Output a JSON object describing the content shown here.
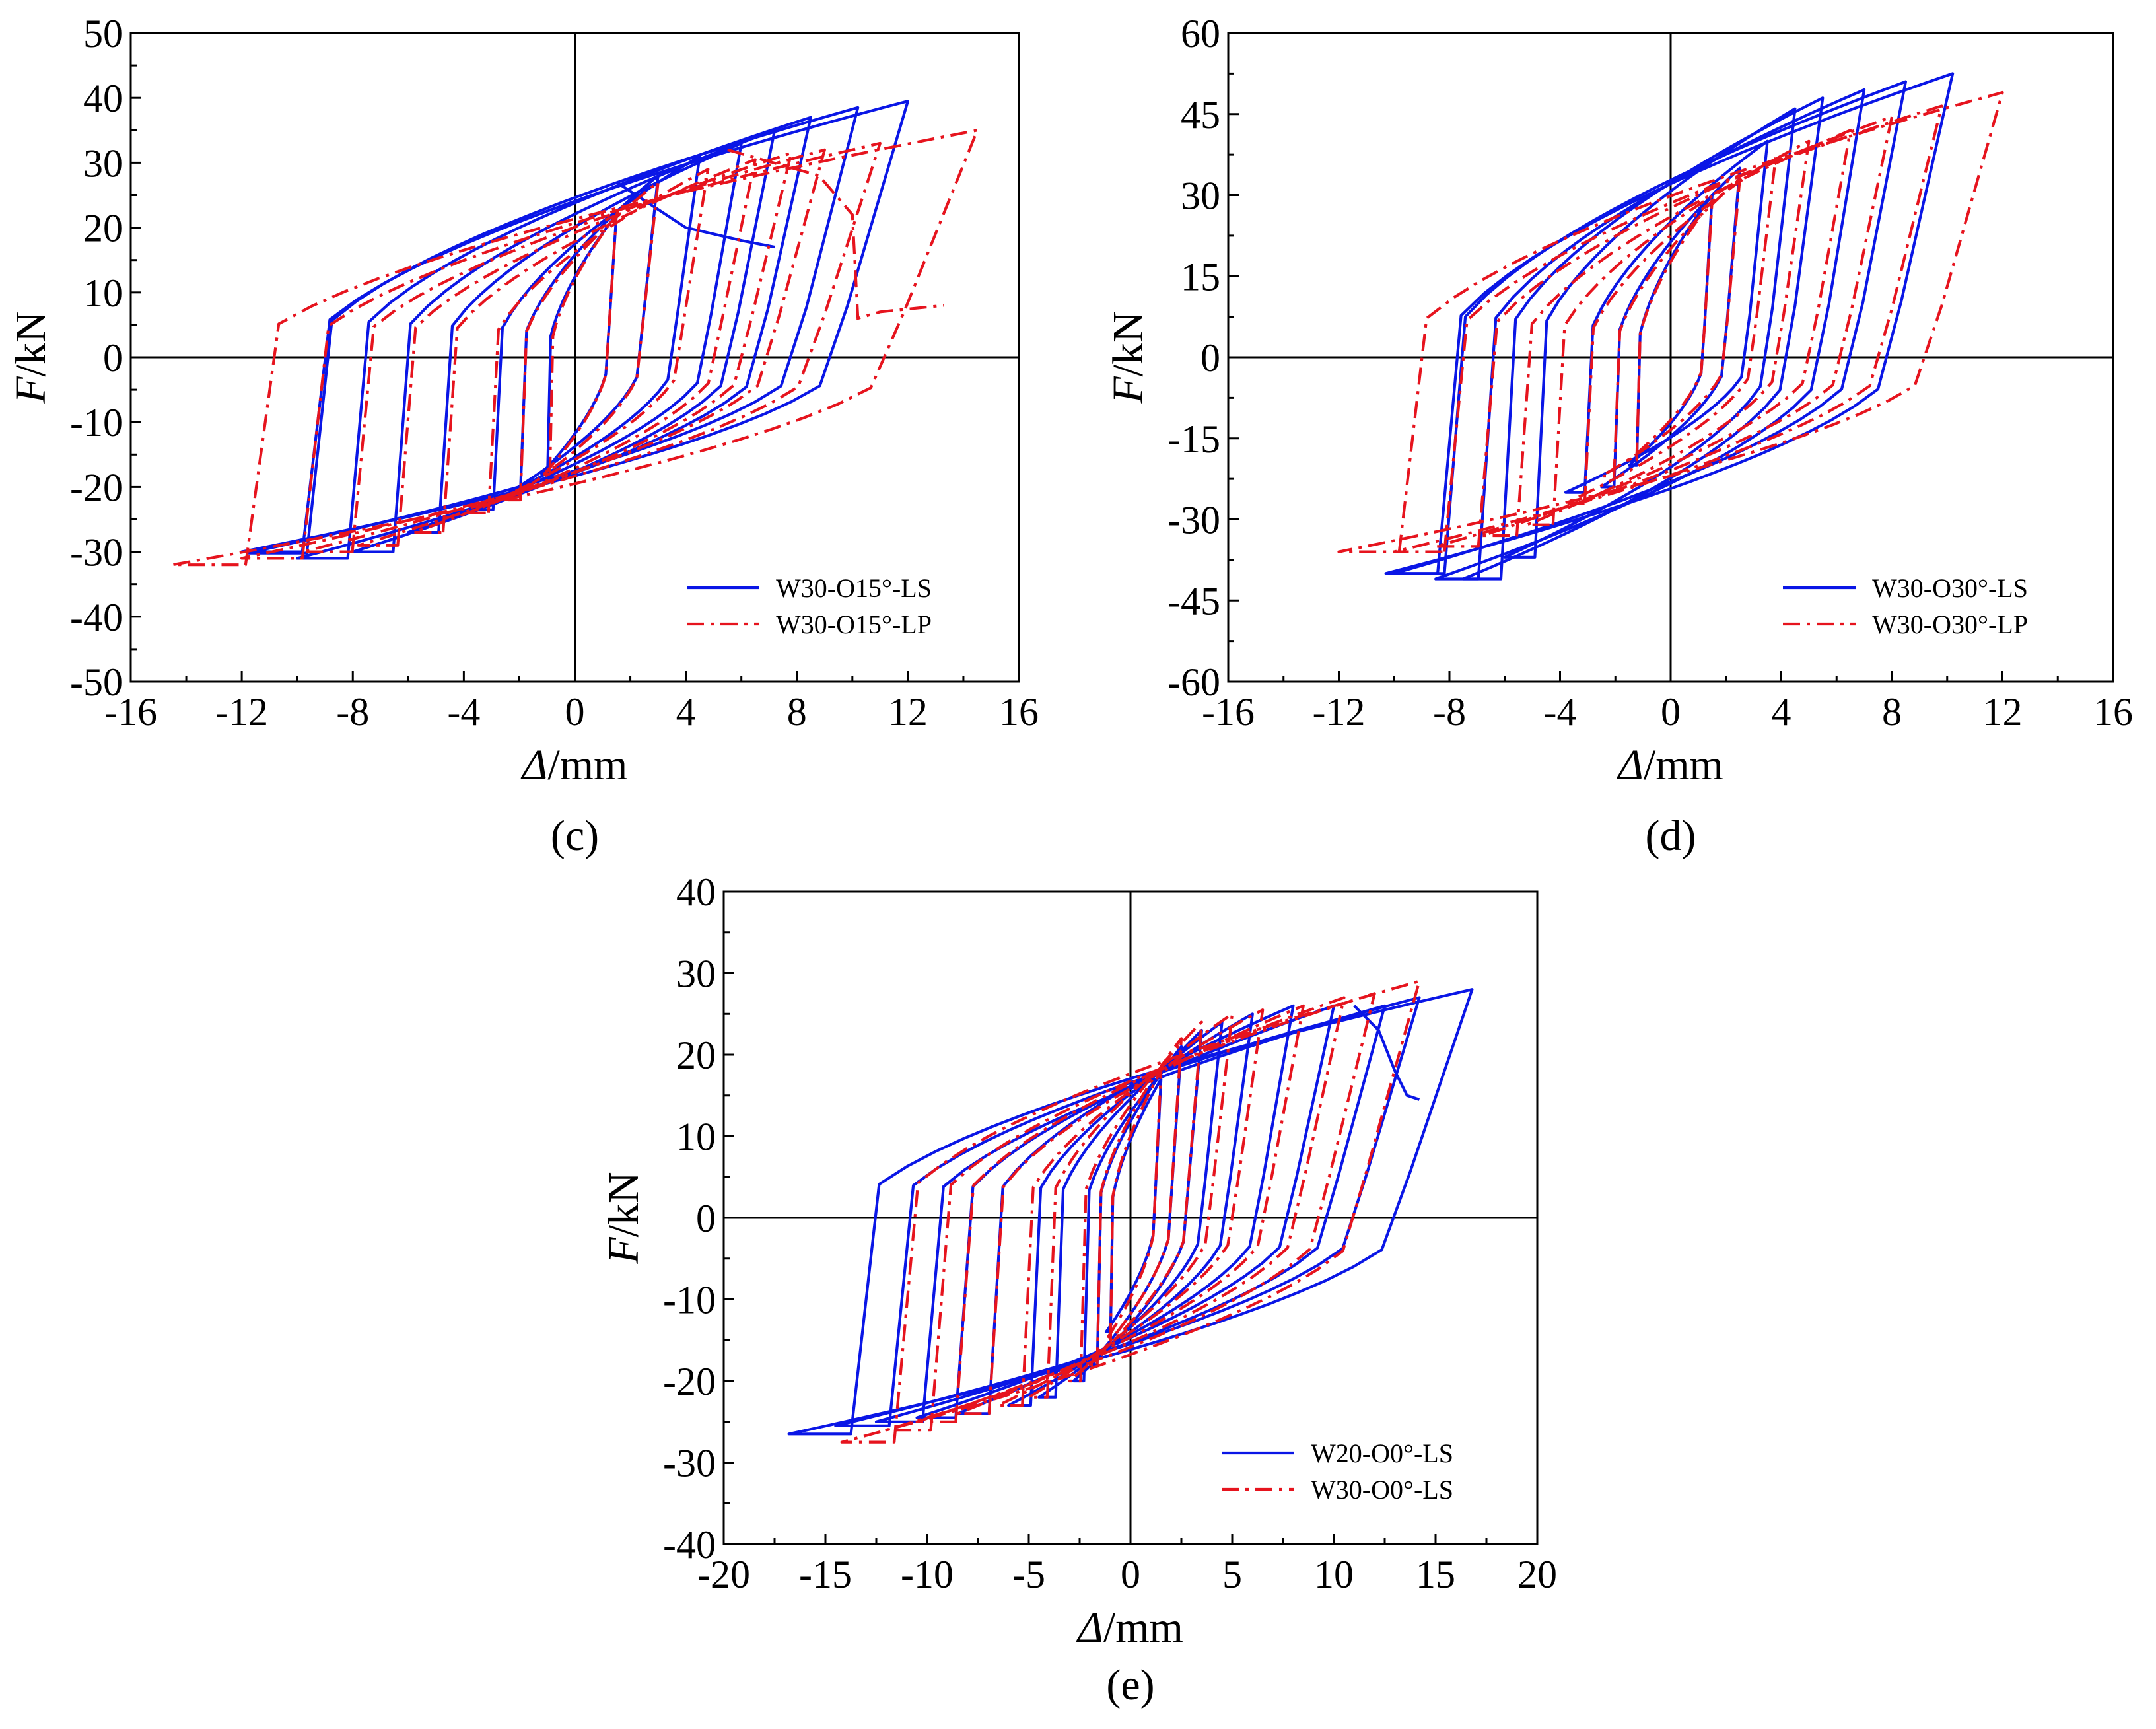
{
  "colors": {
    "series_ls": "#0a16e6",
    "series_lp": "#e6141e",
    "axis": "#000000"
  },
  "chart_data": [
    {
      "panel_label": "(c)",
      "type": "line",
      "x_var": "Δ",
      "x_unit": "/mm",
      "y_var": "F",
      "y_unit": "/kN",
      "xlim": [
        -16,
        16
      ],
      "ylim": [
        -50,
        50
      ],
      "xticks": [
        "-16",
        "-12",
        "-8",
        "-4",
        "0",
        "4",
        "8",
        "12",
        "16"
      ],
      "yticks": [
        "50",
        "40",
        "30",
        "20",
        "10",
        "0",
        "-10",
        "-20",
        "-30",
        "-40",
        "-50"
      ],
      "legend_position": "bottom-right",
      "series": [
        {
          "name": "W30-O15°-LS",
          "style": "solid",
          "color_key": "series_ls",
          "loops": [
            [
              1.5,
              22,
              -1.2,
              -18
            ],
            [
              3,
              28,
              -2.4,
              -21
            ],
            [
              4.5,
              31,
              -3.6,
              -23.5
            ],
            [
              6,
              33,
              -6,
              -27
            ],
            [
              7.2,
              35,
              -8,
              -30
            ],
            [
              8.5,
              37,
              -10,
              -31
            ],
            [
              10.2,
              38.5,
              -11.8,
              -30.2
            ],
            [
              12,
              39.5,
              -12,
              -30
            ]
          ],
          "tail": [
            [
              1.5,
              27
            ],
            [
              4,
              20
            ],
            [
              6,
              18
            ],
            [
              7.2,
              17
            ]
          ]
        },
        {
          "name": "W30-O15°-LP",
          "style": "dash-dot",
          "color_key": "series_lp",
          "loops": [
            [
              1.5,
              22,
              -1.1,
              -18
            ],
            [
              3,
              27,
              -2.4,
              -22
            ],
            [
              4.8,
              29,
              -3.8,
              -24
            ],
            [
              6.5,
              30.5,
              -5.8,
              -27
            ],
            [
              7.8,
              31.5,
              -7.8,
              -29
            ],
            [
              9,
              32,
              -9.8,
              -30
            ],
            [
              11,
              33,
              -12,
              -31
            ],
            [
              14.5,
              35,
              -14.5,
              -32
            ]
          ],
          "tail": [
            [
              5.5,
              32
            ],
            [
              8.8,
              28
            ],
            [
              10,
              22
            ],
            [
              10.2,
              6
            ],
            [
              11,
              7
            ],
            [
              13.3,
              8
            ]
          ]
        }
      ]
    },
    {
      "panel_label": "(d)",
      "type": "line",
      "x_var": "Δ",
      "x_unit": "/mm",
      "y_var": "F",
      "y_unit": "/kN",
      "xlim": [
        -16,
        16
      ],
      "ylim": [
        -60,
        60
      ],
      "xticks": [
        "-16",
        "-12",
        "-8",
        "-4",
        "0",
        "4",
        "8",
        "12",
        "16"
      ],
      "yticks": [
        "60",
        "45",
        "30",
        "15",
        "0",
        "-15",
        "-30",
        "-45",
        "-60"
      ],
      "legend_position": "bottom-right",
      "series": [
        {
          "name": "W30-O30°-LS",
          "style": "solid",
          "color_key": "series_ls",
          "loops": [
            [
              1.5,
              30,
              -1.5,
              -20
            ],
            [
              2.5,
              35,
              -2.5,
              -24
            ],
            [
              3.5,
              40,
              -3.8,
              -25
            ],
            [
              4.5,
              46,
              -6,
              -37
            ],
            [
              5.5,
              48,
              -7.5,
              -41
            ],
            [
              7,
              49.5,
              -8.5,
              -41
            ],
            [
              8.5,
              51,
              -10,
              -40
            ],
            [
              10.2,
              52.5,
              -10.3,
              -40
            ]
          ],
          "tail": []
        },
        {
          "name": "W30-O30°-LP",
          "style": "dash-dot",
          "color_key": "series_lp",
          "loops": [
            [
              1.5,
              29,
              -1.5,
              -19
            ],
            [
              2.5,
              33,
              -2.5,
              -22
            ],
            [
              3.8,
              37,
              -3.8,
              -27
            ],
            [
              5,
              40,
              -5.2,
              -31
            ],
            [
              6.5,
              42,
              -6.8,
              -33
            ],
            [
              8,
              44.5,
              -8.5,
              -35
            ],
            [
              9.8,
              46.5,
              -10,
              -36
            ],
            [
              12,
              49,
              -12,
              -36
            ]
          ],
          "tail": []
        }
      ]
    },
    {
      "panel_label": "(e)",
      "type": "line",
      "x_var": "Δ",
      "x_unit": "/mm",
      "y_var": "F",
      "y_unit": "/kN",
      "xlim": [
        -20,
        20
      ],
      "ylim": [
        -40,
        40
      ],
      "xticks": [
        "-20",
        "-15",
        "-10",
        "-5",
        "0",
        "5",
        "10",
        "15",
        "20"
      ],
      "yticks": [
        "40",
        "30",
        "20",
        "10",
        "0",
        "-10",
        "-20",
        "-30",
        "-40"
      ],
      "legend_position": "bottom-right",
      "series": [
        {
          "name": "W20-O0°-LS",
          "style": "solid",
          "color_key": "series_ls",
          "loops": [
            [
              1.5,
              17,
              -1.2,
              -14
            ],
            [
              2.5,
              21,
              -2,
              -18
            ],
            [
              3.5,
              23,
              -2.8,
              -20
            ],
            [
              4.5,
              24,
              -4.5,
              -22
            ],
            [
              6,
              25,
              -6,
              -23
            ],
            [
              8,
              26,
              -8.5,
              -24
            ],
            [
              10,
              26,
              -10.5,
              -24.5
            ],
            [
              12.5,
              26,
              -12.5,
              -25
            ],
            [
              14.2,
              27,
              -14.5,
              -25.5
            ],
            [
              16.8,
              28,
              -16.8,
              -26.5
            ]
          ],
          "tail": [
            [
              11,
              26
            ],
            [
              12.2,
              23
            ],
            [
              13,
              18
            ],
            [
              13.6,
              15
            ],
            [
              14.2,
              14.5
            ]
          ]
        },
        {
          "name": "W30-O0°-LS",
          "style": "dash-dot",
          "color_key": "series_lp",
          "loops": [
            [
              1.5,
              18,
              -1.2,
              -15
            ],
            [
              2.5,
              22,
              -2,
              -18
            ],
            [
              3.5,
              24,
              -3,
              -20
            ],
            [
              5,
              25,
              -5,
              -22
            ],
            [
              6.5,
              25.5,
              -6.5,
              -23
            ],
            [
              8.5,
              26,
              -8.5,
              -24
            ],
            [
              10.5,
              27,
              -10.5,
              -25
            ],
            [
              12,
              27.5,
              -12,
              -26
            ],
            [
              14.2,
              29,
              -14.2,
              -27.5
            ]
          ],
          "tail": []
        }
      ]
    }
  ]
}
